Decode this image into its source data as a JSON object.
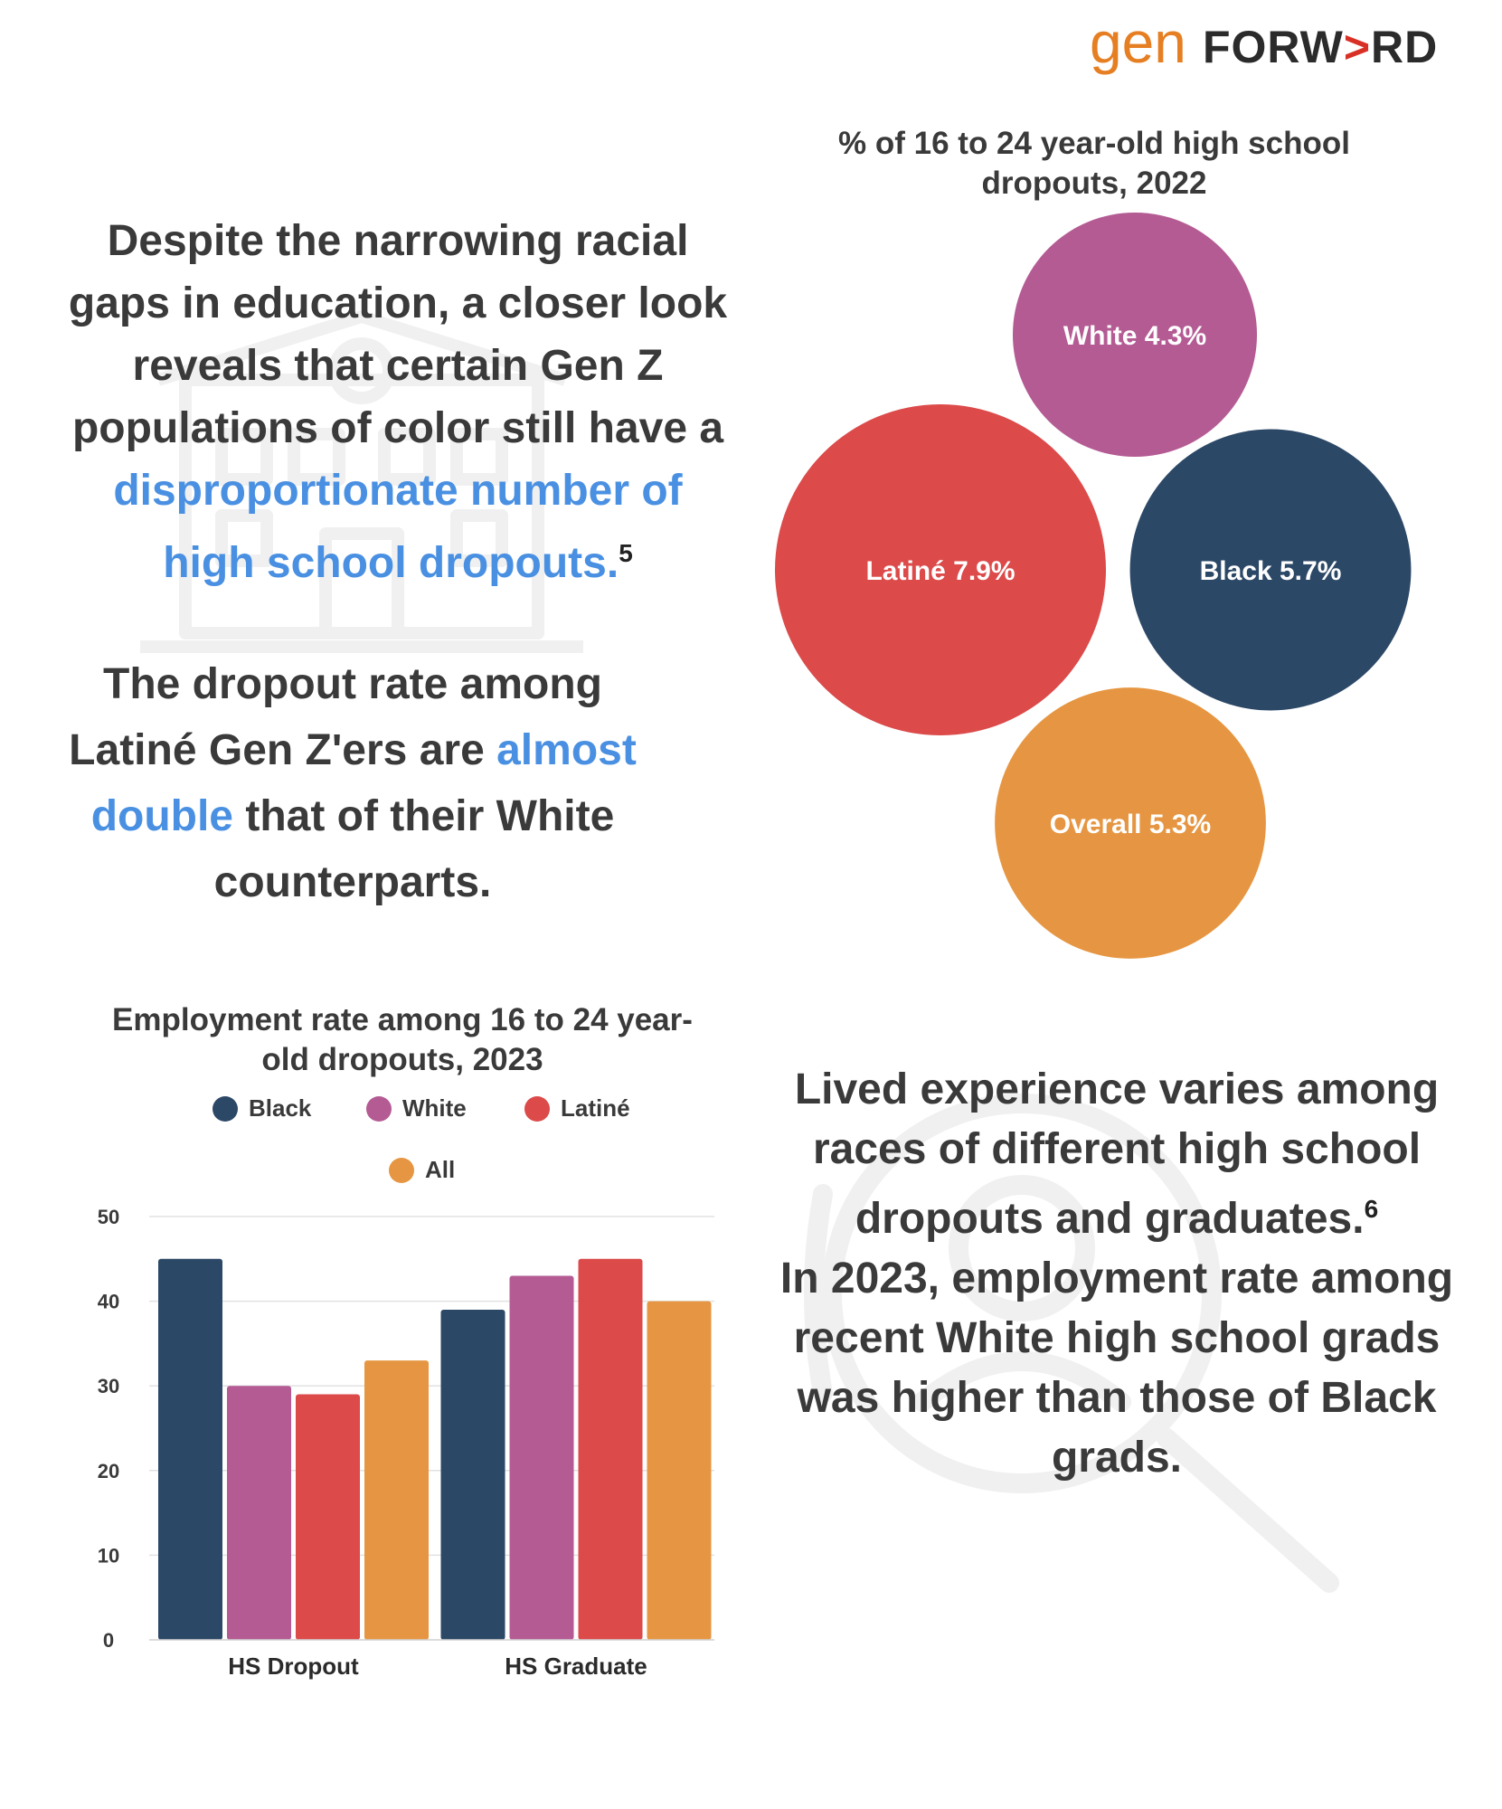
{
  "brand": {
    "logo_gen": "gen",
    "logo_forward": "FORW>RD",
    "gen_color": "#e67e22",
    "forward_color": "#2b2b2b",
    "arrow_color": "#d93025"
  },
  "intro": {
    "text_before": "Despite the narrowing racial gaps in education, a closer look reveals that certain Gen Z populations of color still have a",
    "highlight": "disproportionate number of high school dropouts.",
    "footnote": "5"
  },
  "dropout_para": {
    "text_before": "The dropout rate among Latiné Gen Z'ers are",
    "highlight": "almost double",
    "text_after": "that of their White counterparts."
  },
  "lived_para": {
    "line1": "Lived experience varies among races of different high school dropouts and graduates.",
    "footnote": "6",
    "line2": "In 2023, employment rate among recent White high school grads was higher than those of Black grads."
  },
  "colors": {
    "black": "#2c4867",
    "white": "#b45b94",
    "latine": "#dc4a4a",
    "all": "#e69642",
    "highlight": "#4a90e2",
    "text": "#3a3a3a"
  },
  "icons": [
    "school-building-icon",
    "magnifier-person-icon"
  ],
  "chart_data": [
    {
      "type": "bubble",
      "title": "% of 16 to 24 year-old high school dropouts, 2022",
      "unit": "%",
      "series": [
        {
          "name": "White",
          "value": 4.3,
          "label": "White 4.3%",
          "color": "#b45b94"
        },
        {
          "name": "Latiné",
          "value": 7.9,
          "label": "Latiné 7.9%",
          "color": "#dc4a4a"
        },
        {
          "name": "Black",
          "value": 5.7,
          "label": "Black 5.7%",
          "color": "#2c4867"
        },
        {
          "name": "Overall",
          "value": 5.3,
          "label": "Overall 5.3%",
          "color": "#e69642"
        }
      ]
    },
    {
      "type": "bar",
      "title": "Employment rate among 16 to 24 year-old dropouts, 2023",
      "categories": [
        "HS Dropout",
        "HS Graduate"
      ],
      "series": [
        {
          "name": "Black",
          "values": [
            45,
            39
          ],
          "color": "#2c4867"
        },
        {
          "name": "White",
          "values": [
            30,
            43
          ],
          "color": "#b45b94"
        },
        {
          "name": "Latiné",
          "values": [
            29,
            45
          ],
          "color": "#dc4a4a"
        },
        {
          "name": "All",
          "values": [
            33,
            40
          ],
          "color": "#e69642"
        }
      ],
      "ylim": [
        0,
        50
      ],
      "yticks": [
        "0",
        "10",
        "20",
        "30",
        "40",
        "50"
      ],
      "grid": true,
      "legend_position": "top"
    }
  ]
}
